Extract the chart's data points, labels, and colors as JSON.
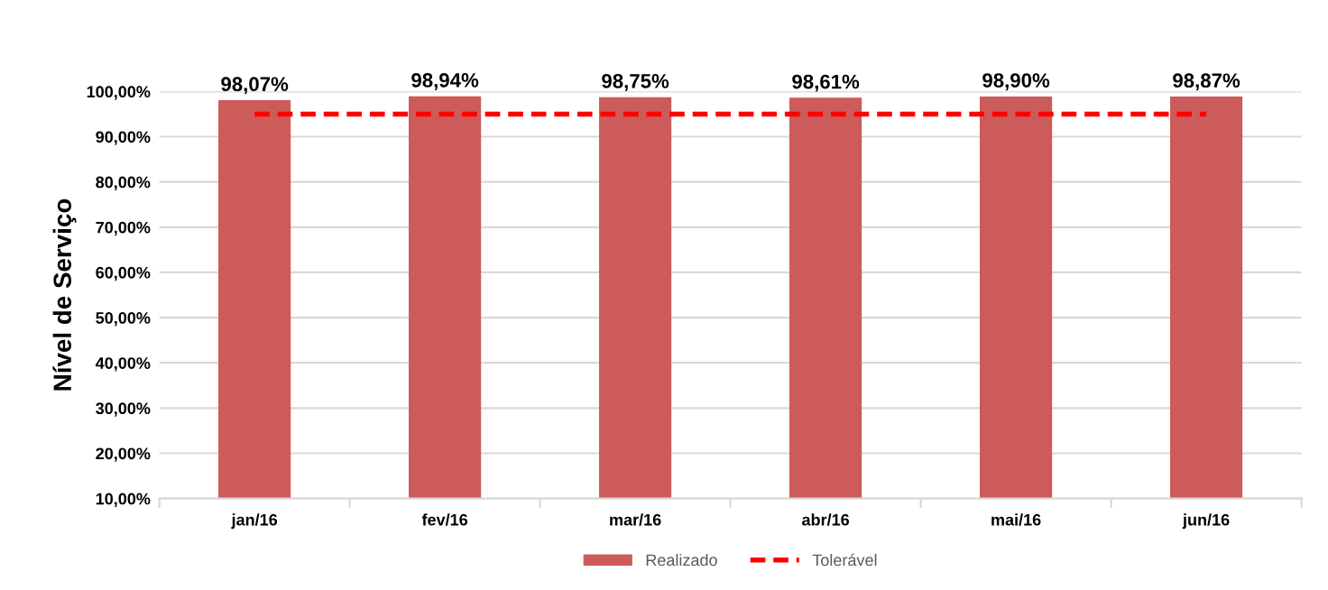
{
  "chart_data": {
    "type": "bar",
    "ylabel": "Nível de Serviço",
    "categories": [
      "jan/16",
      "fev/16",
      "mar/16",
      "abr/16",
      "mai/16",
      "jun/16"
    ],
    "series": [
      {
        "name": "Realizado",
        "type": "bar",
        "color": "#cd5b59",
        "values": [
          98.07,
          98.94,
          98.75,
          98.61,
          98.9,
          98.87
        ],
        "value_labels": [
          "98,07%",
          "98,94%",
          "98,75%",
          "98,61%",
          "98,90%",
          "98,87%"
        ]
      },
      {
        "name": "Tolerável",
        "type": "line",
        "color": "#ff0000",
        "line_style": "dashed",
        "values": [
          95,
          95,
          95,
          95,
          95,
          95
        ]
      }
    ],
    "ylim": [
      10,
      100
    ],
    "yticks": [
      {
        "value": 10,
        "label": "10,00%"
      },
      {
        "value": 20,
        "label": "20,00%"
      },
      {
        "value": 30,
        "label": "30,00%"
      },
      {
        "value": 40,
        "label": "40,00%"
      },
      {
        "value": 50,
        "label": "50,00%"
      },
      {
        "value": 60,
        "label": "60,00%"
      },
      {
        "value": 70,
        "label": "70,00%"
      },
      {
        "value": 80,
        "label": "80,00%"
      },
      {
        "value": 90,
        "label": "90,00%"
      },
      {
        "value": 100,
        "label": "100,00%"
      }
    ],
    "grid": "y",
    "legend": "bottom"
  }
}
